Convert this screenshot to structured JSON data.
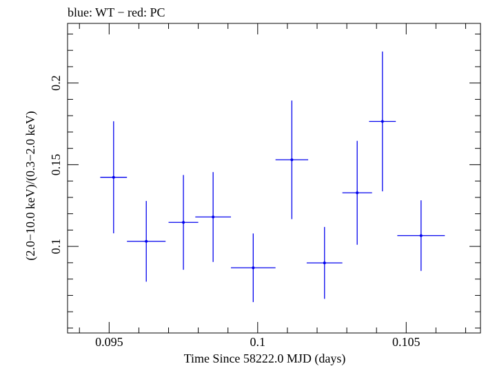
{
  "chart_data": {
    "type": "scatter",
    "title": "blue: WT − red: PC",
    "xlabel": "Time Since 58222.0 MJD (days)",
    "ylabel": "(2.0−10.0 keV)/(0.3−2.0 keV)",
    "xlim": [
      0.0936,
      0.1075
    ],
    "ylim": [
      0.047,
      0.2365
    ],
    "x_ticks": [
      {
        "value": 0.095,
        "label": "0.095"
      },
      {
        "value": 0.1,
        "label": "0.1"
      },
      {
        "value": 0.105,
        "label": "0.105"
      }
    ],
    "y_ticks": [
      {
        "value": 0.1,
        "label": "0.1"
      },
      {
        "value": 0.15,
        "label": "0.15"
      },
      {
        "value": 0.2,
        "label": "0.2"
      }
    ],
    "x_minor_step": 0.001,
    "y_minor_step": 0.01,
    "series": [
      {
        "color": "#0000ee",
        "points": [
          {
            "x": 0.09515,
            "xerr": 0.00045,
            "y": 0.1423,
            "yerr": 0.0343
          },
          {
            "x": 0.09625,
            "xerr": 0.00065,
            "y": 0.1031,
            "yerr": 0.0247
          },
          {
            "x": 0.0975,
            "xerr": 0.0005,
            "y": 0.1147,
            "yerr": 0.029
          },
          {
            "x": 0.0985,
            "xerr": 0.0006,
            "y": 0.118,
            "yerr": 0.0275
          },
          {
            "x": 0.09985,
            "xerr": 0.00075,
            "y": 0.0869,
            "yerr": 0.021
          },
          {
            "x": 0.10115,
            "xerr": 0.00055,
            "y": 0.153,
            "yerr": 0.0363
          },
          {
            "x": 0.10225,
            "xerr": 0.0006,
            "y": 0.0899,
            "yerr": 0.022
          },
          {
            "x": 0.10335,
            "xerr": 0.0005,
            "y": 0.1328,
            "yerr": 0.0318
          },
          {
            "x": 0.1042,
            "xerr": 0.00045,
            "y": 0.1765,
            "yerr": 0.0428
          },
          {
            "x": 0.1055,
            "xerr": 0.0008,
            "y": 0.1066,
            "yerr": 0.0216
          }
        ]
      }
    ]
  }
}
